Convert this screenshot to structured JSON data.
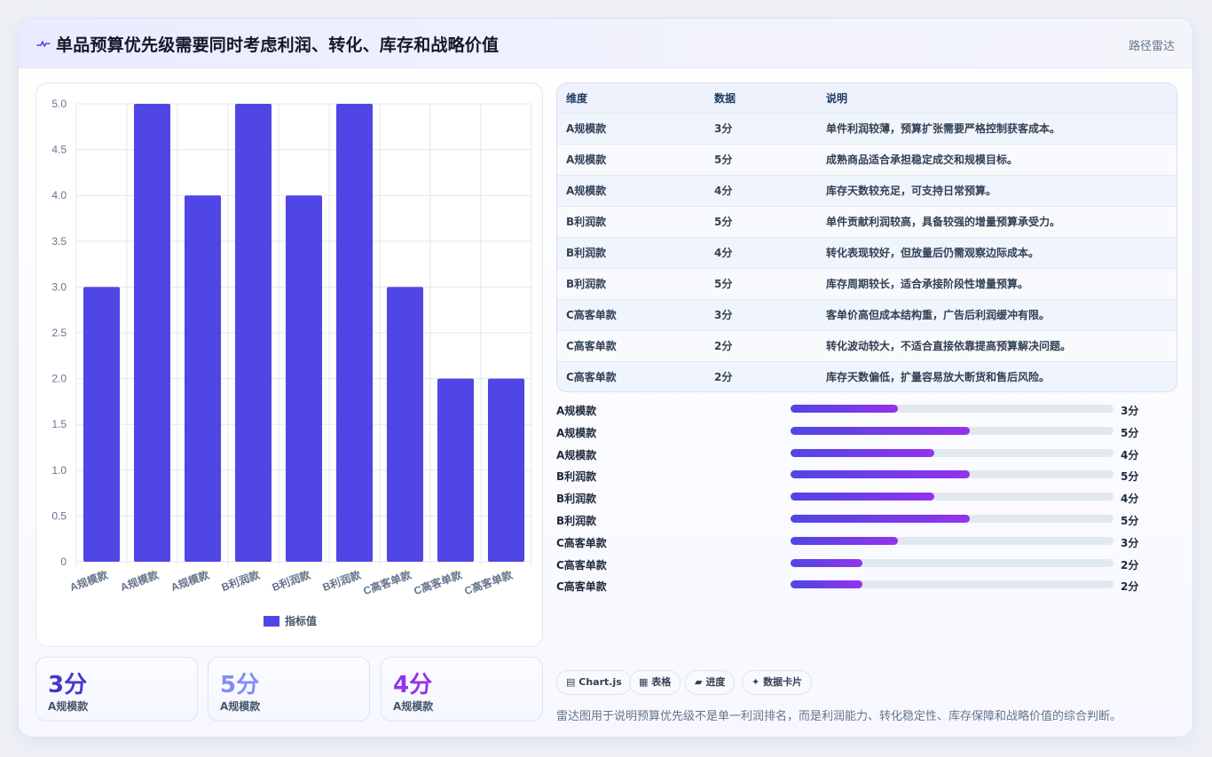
{
  "header": {
    "title": "单品预算优先级需要同时考虑利润、转化、库存和战略价值",
    "tag": "路径雷达"
  },
  "chart_data": {
    "type": "bar",
    "categories": [
      "A规模款",
      "A规模款",
      "A规模款",
      "B利润款",
      "B利润款",
      "B利润款",
      "C高客单款",
      "C高客单款",
      "C高客单款"
    ],
    "series": [
      {
        "name": "指标值",
        "values": [
          3,
          5,
          4,
          5,
          4,
          5,
          3,
          2,
          2
        ]
      }
    ],
    "ylim": [
      0,
      5
    ],
    "yticks": [
      "0",
      "0.5",
      "1.0",
      "1.5",
      "2.0",
      "2.5",
      "3.0",
      "3.5",
      "4.0",
      "4.5",
      "5.0"
    ],
    "grid": true,
    "legend": "bottom",
    "bar_color": "#4f46e5"
  },
  "kpis": [
    {
      "value": "3分",
      "label": "A规模款",
      "color": "#4338ca"
    },
    {
      "value": "5分",
      "label": "A规模款",
      "color": "#818cf8"
    },
    {
      "value": "4分",
      "label": "A规模款",
      "color": "#9333ea"
    }
  ],
  "table": {
    "headers": [
      "维度",
      "数据",
      "说明"
    ],
    "rows": [
      [
        "A规模款",
        "3分",
        "单件利润较薄，预算扩张需要严格控制获客成本。"
      ],
      [
        "A规模款",
        "5分",
        "成熟商品适合承担稳定成交和规模目标。"
      ],
      [
        "A规模款",
        "4分",
        "库存天数较充足，可支持日常预算。"
      ],
      [
        "B利润款",
        "5分",
        "单件贡献利润较高，具备较强的增量预算承受力。"
      ],
      [
        "B利润款",
        "4分",
        "转化表现较好，但放量后仍需观察边际成本。"
      ],
      [
        "B利润款",
        "5分",
        "库存周期较长，适合承接阶段性增量预算。"
      ],
      [
        "C高客单款",
        "3分",
        "客单价高但成本结构重，广告后利润缓冲有限。"
      ],
      [
        "C高客单款",
        "2分",
        "转化波动较大，不适合直接依靠提高预算解决问题。"
      ],
      [
        "C高客单款",
        "2分",
        "库存天数偏低，扩量容易放大断货和售后风险。"
      ]
    ]
  },
  "progress": [
    {
      "label": "A规模款",
      "value": "3分",
      "fraction": 0.333
    },
    {
      "label": "A规模款",
      "value": "5分",
      "fraction": 0.555
    },
    {
      "label": "A规模款",
      "value": "4分",
      "fraction": 0.444
    },
    {
      "label": "B利润款",
      "value": "5分",
      "fraction": 0.555
    },
    {
      "label": "B利润款",
      "value": "4分",
      "fraction": 0.444
    },
    {
      "label": "B利润款",
      "value": "5分",
      "fraction": 0.555
    },
    {
      "label": "C高客单款",
      "value": "3分",
      "fraction": 0.333
    },
    {
      "label": "C高客单款",
      "value": "2分",
      "fraction": 0.222
    },
    {
      "label": "C高客单款",
      "value": "2分",
      "fraction": 0.222
    }
  ],
  "chips": [
    {
      "icon": "chart-icon",
      "label": "Chart.js"
    },
    {
      "icon": "table-icon",
      "label": "表格"
    },
    {
      "icon": "progress-icon",
      "label": "进度"
    },
    {
      "icon": "sparkle-icon",
      "label": "数据卡片"
    }
  ],
  "footnote": "雷达图用于说明预算优先级不是单一利润排名，而是利润能力、转化稳定性、库存保障和战略价值的综合判断。"
}
